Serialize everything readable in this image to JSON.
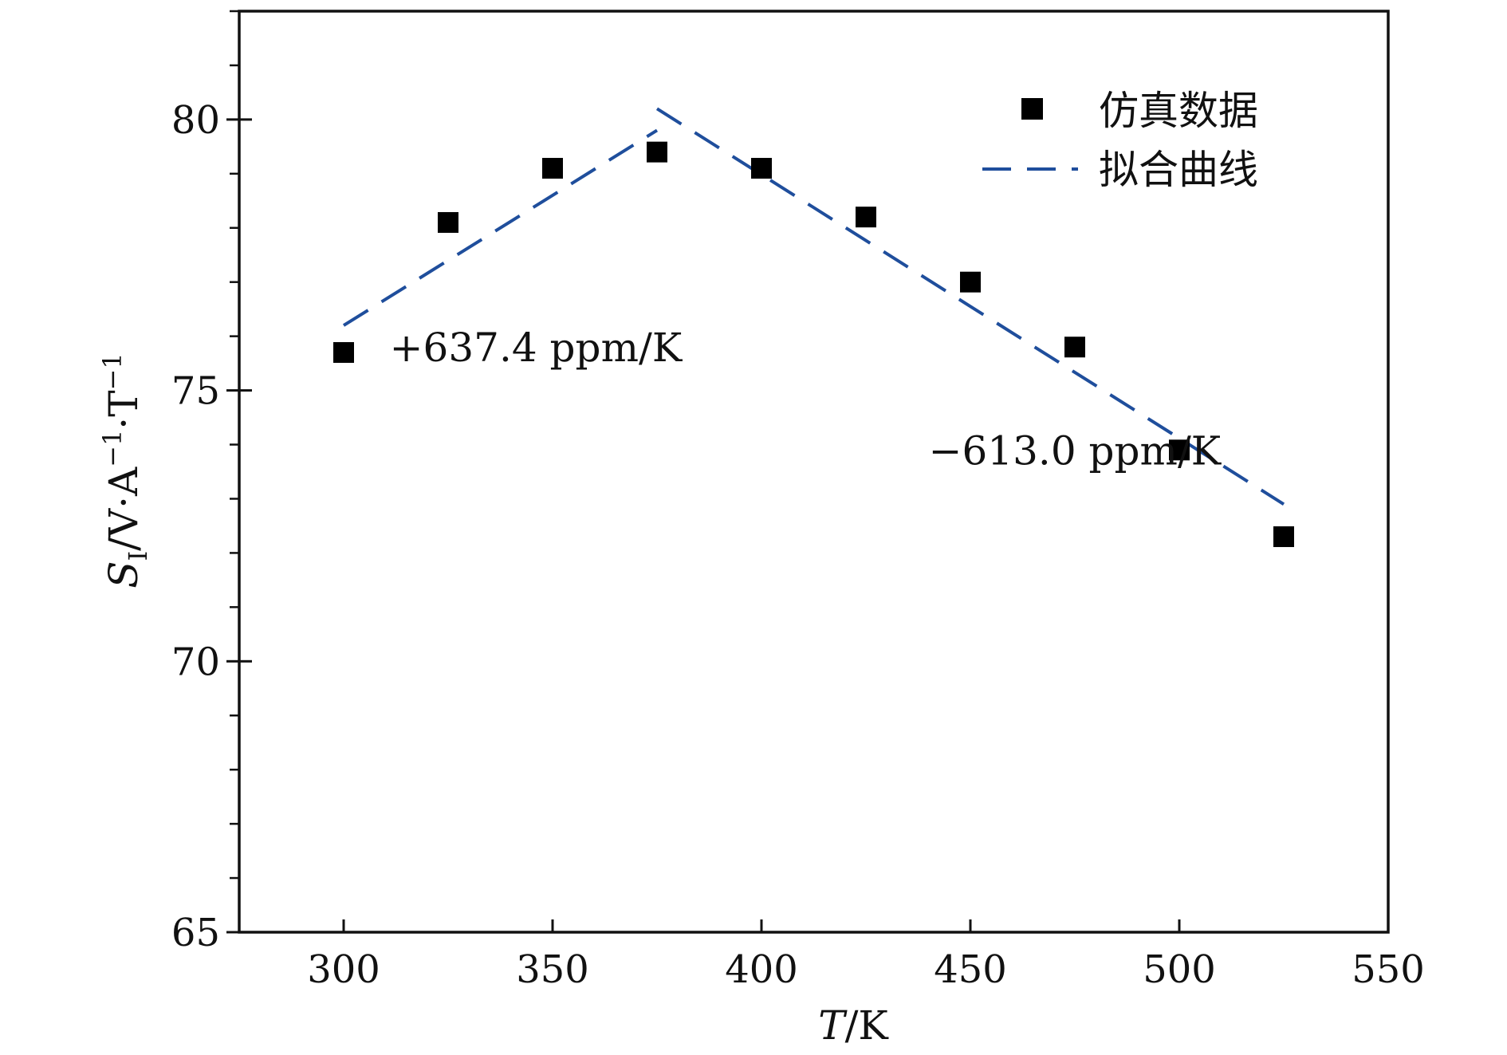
{
  "chart_data": {
    "type": "scatter",
    "xlabel_italic": "T",
    "xlabel_rest": "/K",
    "ylabel": {
      "symbol": "S",
      "subscript": "I",
      "unit_prefix": "/V·A",
      "exp1": "−1",
      "dot": "·T",
      "exp2": "−1"
    },
    "xlim": [
      275,
      550
    ],
    "ylim": [
      65,
      82
    ],
    "x_ticks": [
      300,
      350,
      400,
      450,
      500,
      550
    ],
    "y_ticks": [
      65,
      70,
      75,
      80
    ],
    "y_minor_step": 1,
    "grid": false,
    "legend_position": "top-right",
    "series": [
      {
        "name": "仿真数据",
        "kind": "scatter",
        "marker": "square",
        "color": "#000000",
        "x": [
          300,
          325,
          350,
          375,
          400,
          425,
          450,
          475,
          500,
          525
        ],
        "y": [
          75.7,
          78.1,
          79.1,
          79.4,
          79.1,
          78.2,
          77.0,
          75.8,
          73.9,
          72.3
        ]
      },
      {
        "name": "拟合曲线",
        "kind": "line",
        "style": "dashed",
        "color": "#1f4e9c",
        "segments": [
          {
            "x": [
              300,
              375
            ],
            "y": [
              76.2,
              79.8
            ]
          },
          {
            "x": [
              375,
              525
            ],
            "y": [
              80.2,
              72.9
            ]
          }
        ]
      }
    ],
    "annotations": [
      {
        "text": "+637.4 ppm/K",
        "x": 311,
        "y": 75.8
      },
      {
        "text": "−613.0 ppm/K",
        "x": 440,
        "y": 73.9
      }
    ]
  }
}
